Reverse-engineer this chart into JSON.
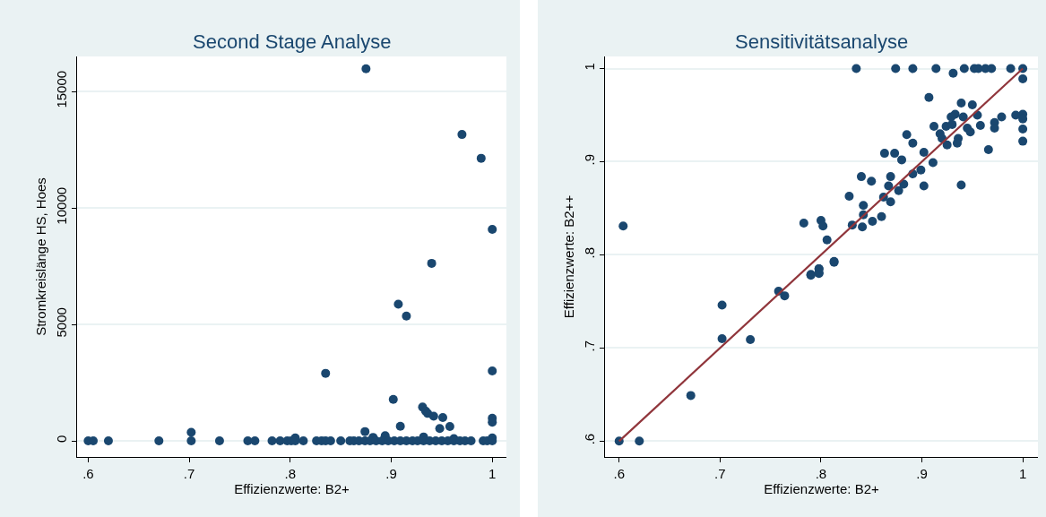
{
  "chart_data": [
    {
      "type": "scatter",
      "title": "Second Stage Analyse",
      "xlabel": "Effizienzwerte: B2+",
      "ylabel": "Stromkreislänge HS, Hoes",
      "series": [
        {
          "color": "#1a476f",
          "x": [
            0.875,
            0.97,
            0.989,
            1.0,
            0.94,
            0.907,
            0.915,
            0.835,
            1.0,
            0.902,
            0.931,
            0.934,
            0.936,
            0.942,
            0.951,
            0.948,
            0.958,
            0.909,
            1.0,
            1.0,
            0.702,
            0.805,
            0.874,
            0.894,
            0.882,
            0.932,
            0.962,
            1.0,
            0.6,
            0.605,
            0.62,
            0.67,
            0.702,
            0.73,
            0.758,
            0.765,
            0.782,
            0.79,
            0.797,
            0.801,
            0.805,
            0.813,
            0.826,
            0.831,
            0.835,
            0.84,
            0.85,
            0.859,
            0.863,
            0.868,
            0.874,
            0.879,
            0.885,
            0.891,
            0.897,
            0.903,
            0.909,
            0.915,
            0.921,
            0.926,
            0.932,
            0.938,
            0.944,
            0.95,
            0.956,
            0.962,
            0.968,
            0.973,
            0.979,
            0.991,
            0.995,
            1.0
          ],
          "values": [
            15970,
            13150,
            12130,
            9080,
            7620,
            5870,
            5360,
            2900,
            3000,
            1780,
            1450,
            1280,
            1180,
            1060,
            1000,
            530,
            620,
            630,
            970,
            800,
            370,
            130,
            400,
            220,
            150,
            170,
            100,
            130,
            0,
            0,
            0,
            0,
            0,
            0,
            0,
            0,
            0,
            0,
            0,
            0,
            0,
            0,
            0,
            0,
            0,
            0,
            0,
            0,
            0,
            0,
            0,
            0,
            0,
            0,
            0,
            0,
            0,
            0,
            0,
            0,
            0,
            0,
            0,
            0,
            0,
            0,
            0,
            0,
            0,
            0,
            0,
            0
          ]
        }
      ],
      "xlim": [
        0.589,
        1.014
      ],
      "ylim": [
        -690,
        16500
      ],
      "xticks": [
        {
          "value": 0.6,
          "label": ".6"
        },
        {
          "value": 0.7,
          "label": ".7"
        },
        {
          "value": 0.8,
          "label": ".8"
        },
        {
          "value": 0.9,
          "label": ".9"
        },
        1
      ],
      "yticks": [
        0,
        5000,
        10000,
        15000
      ],
      "grid": "y",
      "marker": "circle"
    },
    {
      "type": "scatter",
      "title": "Sensitivitätsanalyse",
      "xlabel": "Effizienzwerte: B2+",
      "ylabel": "Effizienzwerte: B2++",
      "series": [
        {
          "color": "#1a476f",
          "x": [
            0.604,
            0.835,
            0.874,
            0.891,
            0.914,
            0.942,
            0.952,
            0.956,
            0.963,
            0.969,
            0.988,
            1.0,
            0.931,
            1.0,
            0.907,
            0.939,
            0.95,
            1.0,
            0.993,
            1.0,
            1.0,
            1.0,
            0.979,
            0.972,
            0.972,
            0.958,
            0.966,
            0.939,
            0.933,
            0.924,
            0.912,
            0.885,
            0.891,
            0.863,
            0.873,
            0.88,
            0.911,
            0.902,
            0.899,
            0.902,
            0.84,
            0.85,
            0.869,
            0.867,
            0.877,
            0.882,
            0.891,
            0.828,
            0.862,
            0.869,
            0.842,
            0.842,
            0.86,
            0.851,
            0.841,
            0.831,
            0.783,
            0.8,
            0.802,
            0.806,
            0.813,
            0.798,
            0.79,
            0.798,
            0.6,
            0.62,
            0.671,
            0.702,
            0.702,
            0.73,
            0.758,
            0.764,
            0.79,
            0.798,
            0.798,
            0.813,
            0.929,
            0.936,
            0.941,
            0.918,
            0.925,
            0.935,
            0.93,
            0.945,
            0.948,
            0.955,
            0.92
          ],
          "values": [
            0.831,
            1.0,
            1.0,
            1.0,
            1.0,
            1.0,
            1.0,
            1.0,
            1.0,
            1.0,
            1.0,
            1.0,
            0.995,
            0.989,
            0.969,
            0.963,
            0.961,
            0.951,
            0.95,
            0.946,
            0.935,
            0.922,
            0.948,
            0.942,
            0.936,
            0.939,
            0.913,
            0.875,
            0.951,
            0.938,
            0.938,
            0.929,
            0.92,
            0.909,
            0.909,
            0.902,
            0.899,
            0.91,
            0.891,
            0.874,
            0.884,
            0.879,
            0.884,
            0.874,
            0.869,
            0.876,
            0.887,
            0.863,
            0.862,
            0.857,
            0.853,
            0.843,
            0.841,
            0.836,
            0.83,
            0.832,
            0.834,
            0.837,
            0.831,
            0.816,
            0.793,
            0.785,
            0.779,
            0.78,
            0.6,
            0.6,
            0.649,
            0.746,
            0.71,
            0.709,
            0.761,
            0.756,
            0.778,
            0.785,
            0.781,
            0.792,
            0.948,
            0.925,
            0.948,
            0.93,
            0.918,
            0.92,
            0.94,
            0.936,
            0.932,
            0.95,
            0.925
          ]
        },
        {
          "type": "line",
          "color": "#90353b",
          "marker": "none",
          "x": [
            0.6,
            1.0
          ],
          "values": [
            0.6,
            1.0
          ]
        }
      ],
      "xlim": [
        0.586,
        1.015
      ],
      "ylim": [
        0.583,
        1.013
      ],
      "xticks": [
        {
          "value": 0.6,
          "label": ".6"
        },
        {
          "value": 0.7,
          "label": ".7"
        },
        {
          "value": 0.8,
          "label": ".8"
        },
        {
          "value": 0.9,
          "label": ".9"
        },
        1
      ],
      "yticks": [
        {
          "value": 0.6,
          "label": ".6"
        },
        {
          "value": 0.7,
          "label": ".7"
        },
        {
          "value": 0.8,
          "label": ".8"
        },
        {
          "value": 0.9,
          "label": ".9"
        },
        1
      ],
      "grid": "y",
      "marker": "circle"
    }
  ]
}
